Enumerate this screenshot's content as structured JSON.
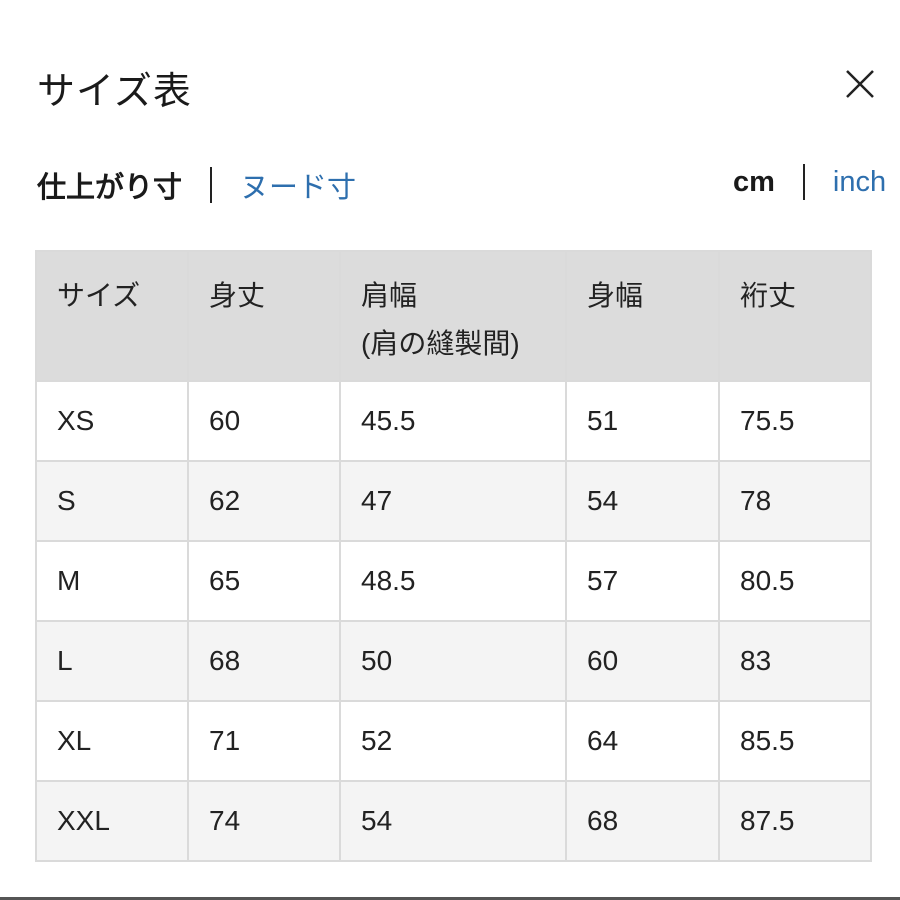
{
  "dialog": {
    "title": "サイズ表",
    "close_icon": "close-icon"
  },
  "measure_tabs": [
    {
      "label": "仕上がり寸",
      "active": true
    },
    {
      "label": "ヌード寸",
      "active": false
    }
  ],
  "unit_tabs": [
    {
      "label": "cm",
      "active": true
    },
    {
      "label": "inch",
      "active": false
    }
  ],
  "colors": {
    "link": "#2e6fae",
    "header_bg": "#dcdcdc",
    "alt_row_bg": "#f4f4f4"
  },
  "table": {
    "headers": [
      "サイズ",
      "身丈",
      "肩幅",
      "身幅",
      "裄丈"
    ],
    "header_sub": "(肩の縫製間)",
    "rows": [
      [
        "XS",
        "60",
        "45.5",
        "51",
        "75.5"
      ],
      [
        "S",
        "62",
        "47",
        "54",
        "78"
      ],
      [
        "M",
        "65",
        "48.5",
        "57",
        "80.5"
      ],
      [
        "L",
        "68",
        "50",
        "60",
        "83"
      ],
      [
        "XL",
        "71",
        "52",
        "64",
        "85.5"
      ],
      [
        "XXL",
        "74",
        "54",
        "68",
        "87.5"
      ]
    ]
  }
}
